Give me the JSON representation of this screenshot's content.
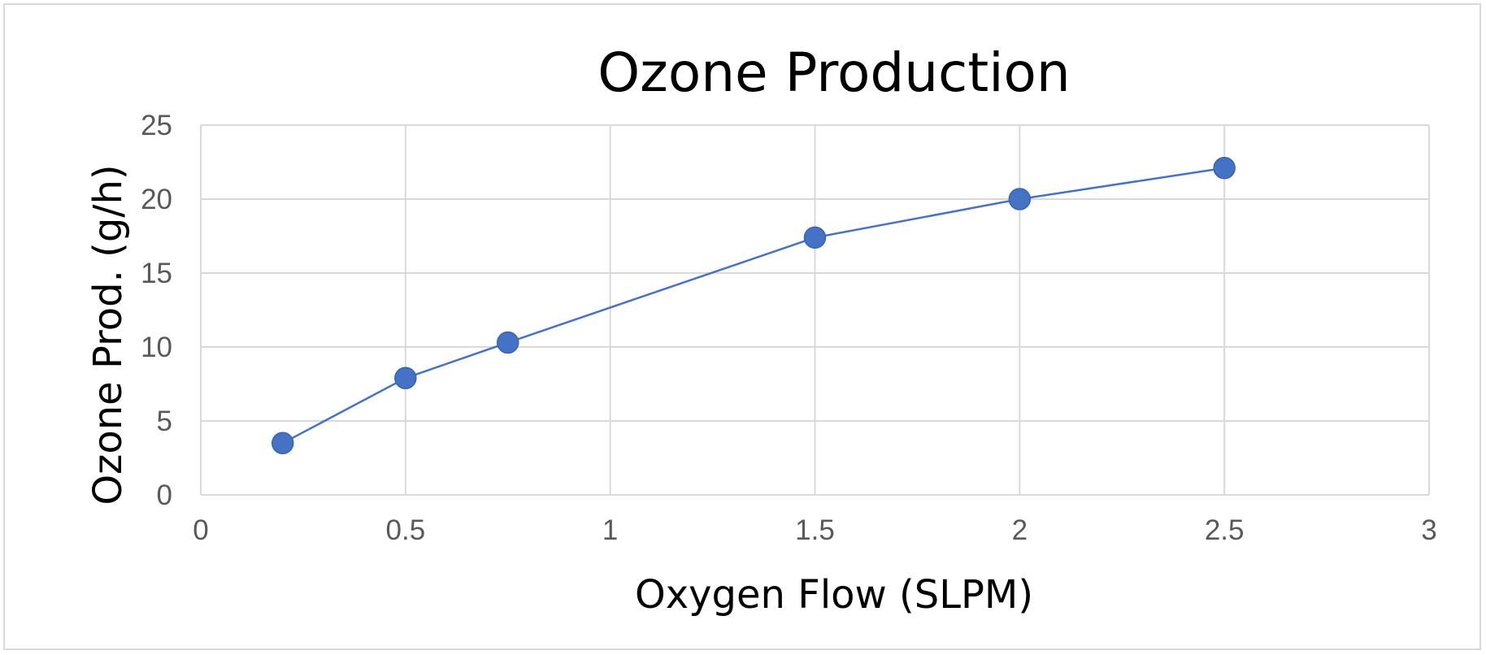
{
  "chart_data": {
    "type": "scatter",
    "title": "Ozone Production",
    "xlabel": "Oxygen Flow (SLPM)",
    "ylabel": "Ozone Prod. (g/h)",
    "xlim": [
      0,
      3
    ],
    "ylim": [
      0,
      25
    ],
    "x_ticks": [
      "0",
      "0.5",
      "1",
      "1.5",
      "2",
      "2.5",
      "3"
    ],
    "y_ticks": [
      "0",
      "5",
      "10",
      "15",
      "20",
      "25"
    ],
    "grid": true,
    "legend": "none",
    "series": [
      {
        "color": "#4472c4",
        "marker": "circle",
        "line": true,
        "x": [
          0.2,
          0.5,
          0.75,
          1.5,
          2.0,
          2.5
        ],
        "y": [
          3.5,
          7.9,
          10.3,
          17.4,
          20.0,
          22.1
        ]
      }
    ]
  }
}
